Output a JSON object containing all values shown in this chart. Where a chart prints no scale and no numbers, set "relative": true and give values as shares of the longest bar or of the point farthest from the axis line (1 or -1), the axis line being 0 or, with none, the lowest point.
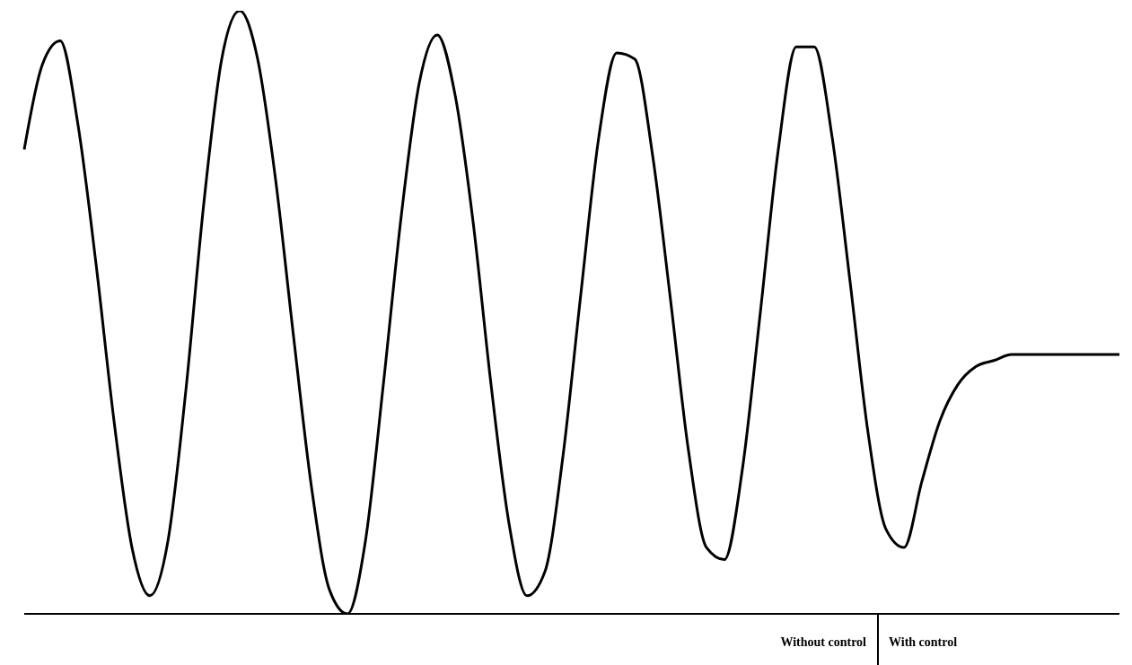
{
  "chart_data": {
    "type": "line",
    "relative": true,
    "color": "#000000",
    "marker": "none",
    "categories": [
      null,
      null,
      null,
      null,
      null,
      null,
      null,
      null,
      null,
      null,
      null,
      null,
      null,
      null,
      null,
      null,
      null,
      null,
      null,
      null,
      null,
      null,
      null,
      null,
      null,
      null,
      null,
      null,
      null,
      null,
      null,
      null,
      null,
      null,
      null,
      null,
      null,
      null,
      null,
      null,
      null,
      null,
      null,
      null,
      null,
      null,
      null,
      null,
      null,
      null,
      null,
      null,
      null,
      null,
      null,
      null,
      null,
      null,
      null,
      null,
      null,
      null
    ],
    "values": [
      0.77,
      0.91,
      0.95,
      0.81,
      0.58,
      0.32,
      0.11,
      0.03,
      0.12,
      0.37,
      0.68,
      0.92,
      1,
      0.92,
      0.72,
      0.46,
      0.21,
      0.04,
      0,
      0.12,
      0.38,
      0.66,
      0.88,
      0.96,
      0.86,
      0.65,
      0.38,
      0.15,
      0.03,
      0.07,
      0.26,
      0.53,
      0.79,
      0.93,
      0.92,
      0.76,
      0.52,
      0.27,
      0.11,
      0.09,
      0.24,
      0.5,
      0.77,
      0.94,
      0.94,
      0.79,
      0.55,
      0.3,
      0.14,
      0.11,
      0.22,
      0.32,
      0.38,
      0.41,
      0.42,
      0.43,
      0.43,
      0.43,
      0.43,
      0.43,
      0.43,
      0.43
    ],
    "annotations": [
      "Without control",
      "With control"
    ]
  }
}
